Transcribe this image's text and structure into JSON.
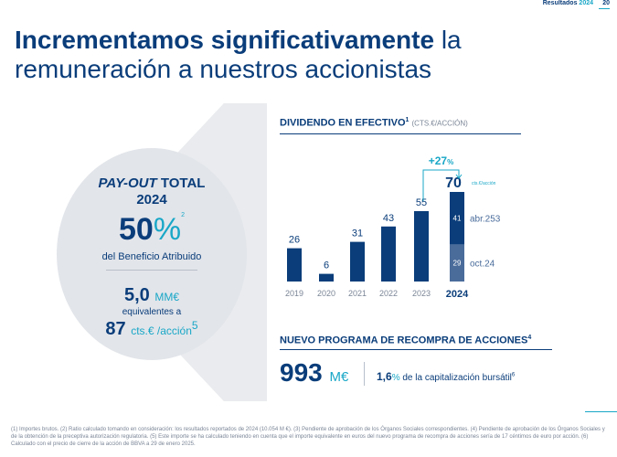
{
  "header": {
    "section": "Resultados",
    "year": "2024",
    "page": "20"
  },
  "title": {
    "bold": "Incrementamos significativamente",
    "rest": " la remuneración a nuestros accionistas"
  },
  "payout": {
    "label_italic": "PAY-OUT",
    "label_rest": " TOTAL",
    "year": "2024",
    "value": "50",
    "symbol": "%",
    "note": "2",
    "subtitle": "del Beneficio Atribuido",
    "amount": "5,0",
    "amount_unit": "MM€",
    "equiv": "equivalentes a",
    "per_share": "87",
    "per_share_unit": "cts.€ /acción",
    "per_share_note": "5"
  },
  "dividend": {
    "title": "DIVIDENDO EN EFECTIVO",
    "title_note": "1",
    "unit": "(CTS.€/ACCIÓN)"
  },
  "buyback": {
    "title": "NUEVO PROGRAMA DE RECOMPRA DE ACCIONES",
    "title_note": "4",
    "value": "993",
    "unit": "M€",
    "pct": "1,6",
    "pct_symbol": "%",
    "cap_text": " de la capitalización bursátil",
    "cap_note": "6"
  },
  "chart_data": {
    "type": "bar",
    "categories": [
      "2019",
      "2020",
      "2021",
      "2022",
      "2023",
      "2024"
    ],
    "values": [
      26,
      6,
      31,
      43,
      55,
      70
    ],
    "stack_2024": [
      {
        "name": "oct.24",
        "value": 29,
        "color": "#4a6c9b"
      },
      {
        "name": "abr.25",
        "note": "3",
        "value": 41,
        "color": "#0a3d7a"
      }
    ],
    "total_2024_unit": "cts.€/acción",
    "growth_label": "+27%",
    "growth_value": "+27",
    "growth_symbol": "%",
    "ylim": [
      0,
      75
    ],
    "bar_color": "#0a3d7a",
    "accent_color": "#19a7c7"
  },
  "footnote": "(1) Importes brutos. (2) Ratio calculado tomando en consideración: los resultados reportados de 2024 (10.054 M €). (3) Pendiente de aprobación de los Órganos Sociales correspondientes. (4) Pendiente de aprobación de los Órganos Sociales y de la obtención de la preceptiva autorización regulatoria. (5) Este importe se ha calculado teniendo en cuenta que el importe equivalente en euros del nuevo programa de recompra de acciones sería de 17 céntimos de euro por acción. (6) Calculado con el precio de cierre de la acción de BBVA a 29 de enero 2025."
}
